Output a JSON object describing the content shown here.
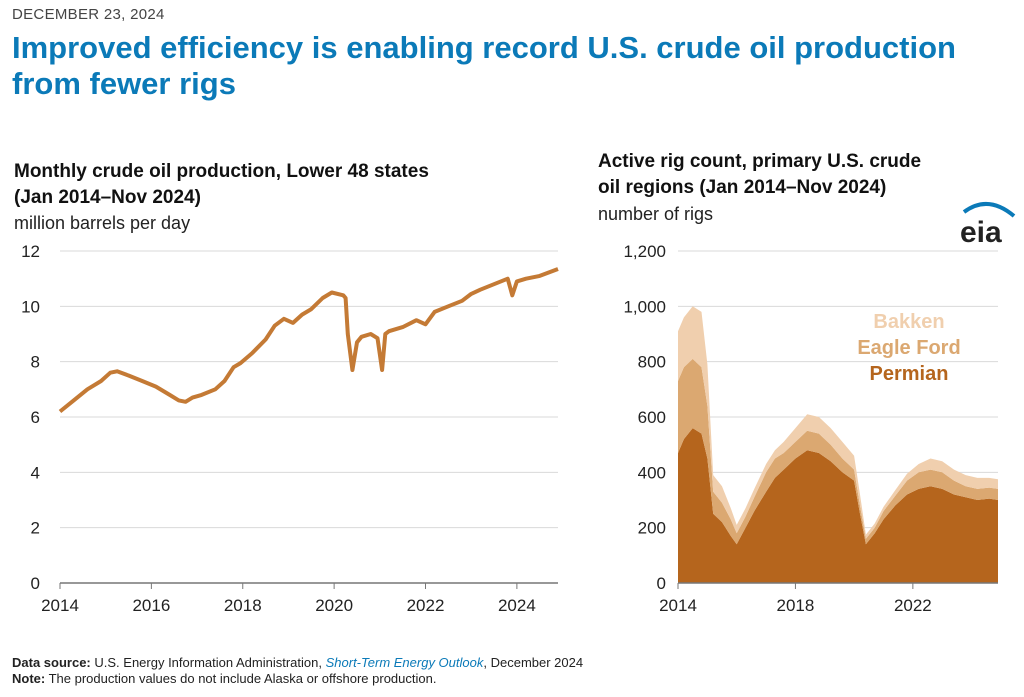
{
  "header": {
    "date": "DECEMBER 23, 2024",
    "headline": "Improved efficiency is enabling record U.S. crude oil production from fewer rigs"
  },
  "logo": {
    "text": "eia",
    "accent_color": "#0b7ab8"
  },
  "footer": {
    "source_label": "Data source:",
    "source_text": "U.S. Energy Information Administration,",
    "source_link": "Short-Term Energy Outlook",
    "source_suffix": ", December 2024",
    "note_label": "Note:",
    "note_text": "The production values do not include Alaska or offshore production."
  },
  "chart_data": [
    {
      "type": "line",
      "title_line1": "Monthly crude oil production, Lower 48 states",
      "title_line2": "(Jan 2014–Nov 2024)",
      "ylabel": "million barrels per day",
      "xlim": [
        2014,
        2024.9
      ],
      "ylim": [
        0,
        12
      ],
      "yticks": [
        "0",
        "2",
        "4",
        "6",
        "8",
        "10",
        "12"
      ],
      "xticks": [
        "2014",
        "2016",
        "2018",
        "2020",
        "2022",
        "2024"
      ],
      "grid": "horizontal",
      "color": "#c47a35",
      "series": [
        {
          "x": [
            2014.0,
            2014.3,
            2014.6,
            2014.9,
            2015.1,
            2015.25,
            2015.5,
            2015.8,
            2016.1,
            2016.4,
            2016.6,
            2016.75,
            2016.9,
            2017.1,
            2017.4,
            2017.6,
            2017.8,
            2017.95,
            2018.2,
            2018.5,
            2018.7,
            2018.9,
            2019.1,
            2019.3,
            2019.5,
            2019.75,
            2019.95,
            2020.2,
            2020.25,
            2020.3,
            2020.4,
            2020.5,
            2020.6,
            2020.8,
            2020.95,
            2021.05,
            2021.12,
            2021.2,
            2021.5,
            2021.8,
            2022.0,
            2022.2,
            2022.5,
            2022.8,
            2023.0,
            2023.2,
            2023.5,
            2023.8,
            2023.9,
            2024.0,
            2024.2,
            2024.5,
            2024.9
          ],
          "y": [
            6.2,
            6.6,
            7.0,
            7.3,
            7.6,
            7.65,
            7.5,
            7.3,
            7.1,
            6.8,
            6.6,
            6.55,
            6.7,
            6.8,
            7.0,
            7.3,
            7.8,
            7.95,
            8.3,
            8.8,
            9.3,
            9.55,
            9.4,
            9.7,
            9.9,
            10.3,
            10.5,
            10.4,
            10.3,
            9.0,
            7.7,
            8.7,
            8.9,
            9.0,
            8.85,
            7.7,
            9.0,
            9.1,
            9.25,
            9.5,
            9.35,
            9.8,
            10.0,
            10.2,
            10.45,
            10.6,
            10.8,
            11.0,
            10.4,
            10.9,
            11.0,
            11.1,
            11.35
          ]
        }
      ]
    },
    {
      "type": "area",
      "stacked": true,
      "title_line1": "Active rig count, primary U.S. crude",
      "title_line2": "oil regions (Jan 2014–Nov 2024)",
      "ylabel": "number of rigs",
      "xlim": [
        2014,
        2024.9
      ],
      "ylim": [
        0,
        1200
      ],
      "yticks": [
        "0",
        "200",
        "400",
        "600",
        "800",
        "1,000",
        "1,200"
      ],
      "xticks": [
        "2014",
        "2018",
        "2022"
      ],
      "grid": "horizontal",
      "legend_position": "top-right",
      "x": [
        2014.0,
        2014.2,
        2014.5,
        2014.8,
        2015.0,
        2015.2,
        2015.5,
        2015.8,
        2016.0,
        2016.3,
        2016.6,
        2017.0,
        2017.3,
        2017.6,
        2018.0,
        2018.4,
        2018.8,
        2019.2,
        2019.6,
        2020.0,
        2020.2,
        2020.4,
        2020.7,
        2021.0,
        2021.4,
        2021.8,
        2022.2,
        2022.6,
        2023.0,
        2023.4,
        2023.8,
        2024.2,
        2024.6,
        2024.9
      ],
      "series": [
        {
          "name": "Permian",
          "color": "#b5651d",
          "values": [
            470,
            520,
            560,
            540,
            450,
            250,
            220,
            170,
            140,
            200,
            260,
            330,
            380,
            410,
            450,
            480,
            470,
            440,
            400,
            370,
            250,
            140,
            180,
            230,
            280,
            320,
            340,
            350,
            340,
            320,
            310,
            300,
            305,
            300
          ]
        },
        {
          "name": "Eagle Ford",
          "color": "#dba871",
          "values": [
            260,
            260,
            250,
            240,
            190,
            80,
            70,
            60,
            40,
            40,
            50,
            70,
            70,
            60,
            60,
            70,
            70,
            60,
            50,
            40,
            30,
            20,
            20,
            30,
            35,
            50,
            60,
            60,
            60,
            50,
            40,
            40,
            40,
            40
          ]
        },
        {
          "name": "Bakken",
          "color": "#f0cfae",
          "values": [
            180,
            180,
            190,
            200,
            150,
            60,
            60,
            40,
            30,
            30,
            30,
            30,
            30,
            40,
            50,
            60,
            60,
            60,
            60,
            50,
            40,
            15,
            15,
            15,
            20,
            25,
            30,
            40,
            40,
            40,
            40,
            40,
            35,
            35
          ]
        }
      ]
    }
  ]
}
